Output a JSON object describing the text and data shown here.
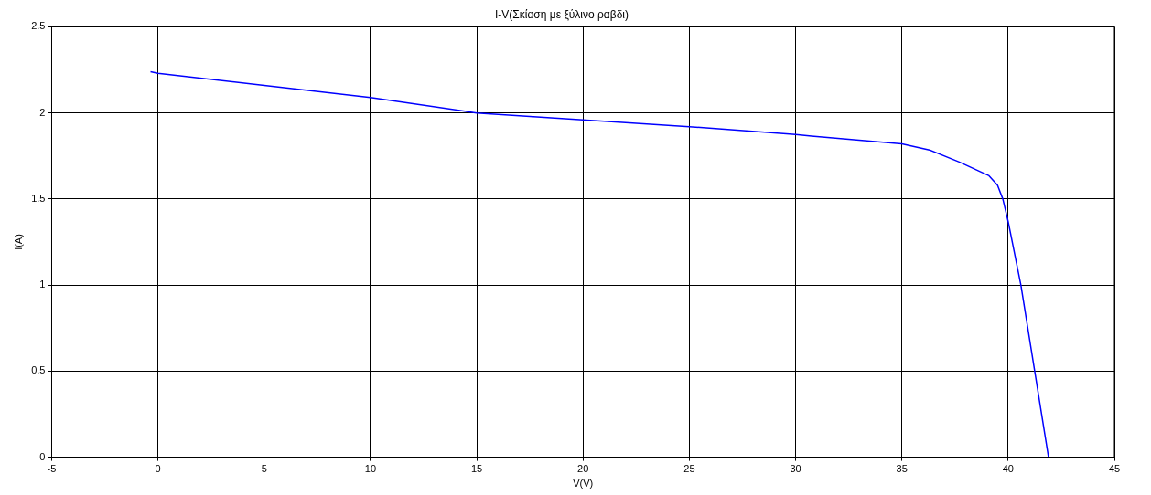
{
  "chart_data": {
    "type": "line",
    "title": "I-V(Σκίαση με ξύλινο ραβδι)",
    "xlabel": "V(V)",
    "ylabel": "I(A)",
    "series": [
      {
        "color": "#0000ff",
        "x": [
          -0.35,
          0,
          5,
          10,
          15,
          20,
          25,
          30,
          30.75,
          35,
          36.3,
          37.7,
          39.1,
          39.5,
          39.75,
          40,
          40.6,
          41.25,
          41.9
        ],
        "values": [
          2.24,
          2.23,
          2.16,
          2.09,
          2.0,
          1.96,
          1.92,
          1.875,
          1.866,
          1.82,
          1.785,
          1.715,
          1.635,
          1.58,
          1.5,
          1.37,
          1.0,
          0.5,
          0
        ]
      }
    ],
    "xlim": [
      -5,
      45
    ],
    "xticks": [
      -5,
      0,
      5,
      10,
      15,
      20,
      25,
      30,
      35,
      40,
      45
    ],
    "ylim": [
      0,
      2.5
    ],
    "yticks": [
      0,
      0.5,
      1,
      1.5,
      2,
      2.5
    ],
    "grid": true,
    "marker": "none",
    "line_style": "solid"
  }
}
